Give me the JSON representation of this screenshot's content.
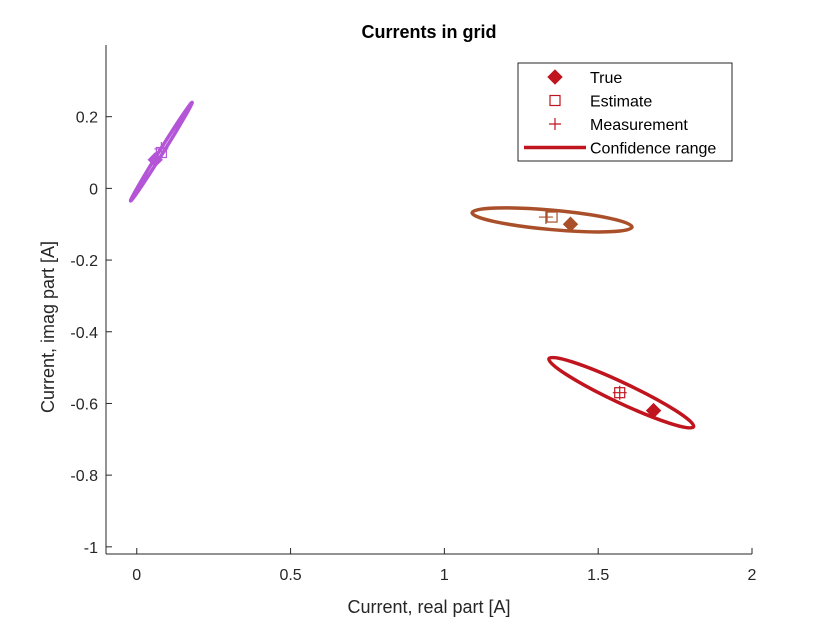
{
  "chart_data": {
    "type": "scatter",
    "title": "Currents in grid",
    "xlabel": "Current, real part [A]",
    "ylabel": "Current, imag part [A]",
    "xlim": [
      -0.1,
      2.0
    ],
    "ylim": [
      -1.02,
      0.4
    ],
    "xticks": [
      0,
      0.5,
      1,
      1.5,
      2
    ],
    "xtick_labels": [
      "0",
      "0.5",
      "1",
      "1.5",
      "2"
    ],
    "yticks": [
      -1,
      -0.8,
      -0.6,
      -0.4,
      -0.2,
      0,
      0.2
    ],
    "ytick_labels": [
      "-1",
      "-0.8",
      "-0.6",
      "-0.4",
      "-0.2",
      "0",
      "0.2"
    ],
    "grid": false,
    "legend_position": "top-right",
    "legend": [
      {
        "label": "True",
        "marker": "filled-diamond"
      },
      {
        "label": "Estimate",
        "marker": "open-square"
      },
      {
        "label": "Measurement",
        "marker": "plus"
      },
      {
        "label": "Confidence range",
        "marker": "line"
      }
    ],
    "series": [
      {
        "color": "#c0141e",
        "true": [
          1.68,
          -0.62
        ],
        "estimate": [
          1.57,
          -0.57
        ],
        "measurement": [
          1.57,
          -0.57
        ],
        "ellipse_endpoints": [
          [
            1.34,
            -0.475
          ],
          [
            1.81,
            -0.665
          ]
        ],
        "ellipse_minor_half": 0.028
      },
      {
        "color": "#a9502a",
        "true": [
          1.41,
          -0.1
        ],
        "estimate": [
          1.35,
          -0.08
        ],
        "measurement": [
          1.33,
          -0.08
        ],
        "ellipse_endpoints": [
          [
            1.09,
            -0.068
          ],
          [
            1.61,
            -0.108
          ]
        ],
        "ellipse_minor_half": 0.027
      },
      {
        "color": "#b455d7",
        "true": [
          0.06,
          0.08
        ],
        "estimate": [
          0.08,
          0.1
        ],
        "measurement": [
          0.08,
          0.11
        ],
        "ellipse_endpoints": [
          [
            -0.02,
            -0.035
          ],
          [
            0.18,
            0.24
          ]
        ],
        "ellipse_minor_half": 0.004
      }
    ]
  }
}
